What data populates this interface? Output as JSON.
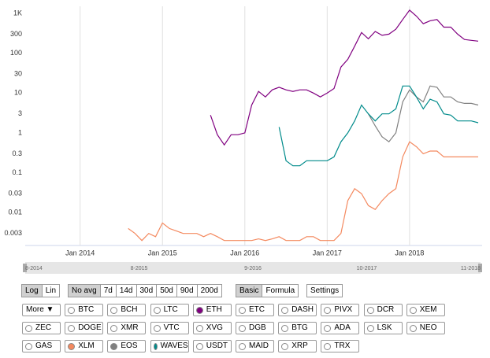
{
  "chart_data": {
    "type": "line",
    "log_scale": true,
    "grid": true,
    "x": [
      "2014-08",
      "2014-09",
      "2014-10",
      "2014-11",
      "2014-12",
      "2015-01",
      "2015-02",
      "2015-03",
      "2015-04",
      "2015-05",
      "2015-06",
      "2015-07",
      "2015-08",
      "2015-09",
      "2015-10",
      "2015-11",
      "2015-12",
      "2016-01",
      "2016-02",
      "2016-03",
      "2016-04",
      "2016-05",
      "2016-06",
      "2016-07",
      "2016-08",
      "2016-09",
      "2016-10",
      "2016-11",
      "2016-12",
      "2017-01",
      "2017-02",
      "2017-03",
      "2017-04",
      "2017-05",
      "2017-06",
      "2017-07",
      "2017-08",
      "2017-09",
      "2017-10",
      "2017-11",
      "2017-12",
      "2018-01",
      "2018-02",
      "2018-03",
      "2018-04",
      "2018-05",
      "2018-06",
      "2018-07",
      "2018-08",
      "2018-09",
      "2018-10",
      "2018-11"
    ],
    "xlim": [
      "2013-05",
      "2018-11"
    ],
    "xticks": [
      {
        "value": "2014-01",
        "label": "Jan 2014"
      },
      {
        "value": "2015-01",
        "label": "Jan 2015"
      },
      {
        "value": "2016-01",
        "label": "Jan 2016"
      },
      {
        "value": "2017-01",
        "label": "Jan 2017"
      },
      {
        "value": "2018-01",
        "label": "Jan 2018"
      }
    ],
    "ylim": [
      0.0015,
      1500
    ],
    "yticks": [
      0.003,
      0.01,
      0.03,
      0.1,
      0.3,
      1,
      3,
      10,
      30,
      100,
      300,
      {
        "value": 1000,
        "label": "1K"
      }
    ],
    "series": [
      {
        "name": "ETH",
        "color": "#800080",
        "values": [
          null,
          null,
          null,
          null,
          null,
          null,
          null,
          null,
          null,
          null,
          null,
          null,
          2.8,
          0.9,
          0.5,
          0.9,
          0.9,
          1,
          5,
          11,
          8,
          12,
          14,
          12,
          11,
          12,
          12,
          10,
          8,
          10,
          13,
          45,
          70,
          150,
          330,
          230,
          350,
          280,
          300,
          400,
          700,
          1200,
          850,
          550,
          650,
          700,
          450,
          450,
          300,
          220,
          210,
          200
        ]
      },
      {
        "name": "XLM",
        "color": "#f4895f",
        "values": [
          0.004,
          0.003,
          0.002,
          0.003,
          0.0025,
          0.0055,
          0.004,
          0.0035,
          0.003,
          0.003,
          0.003,
          0.0025,
          0.003,
          0.0025,
          0.002,
          0.002,
          0.002,
          0.002,
          0.002,
          0.0022,
          0.002,
          0.0022,
          0.0025,
          0.002,
          0.002,
          0.002,
          0.0025,
          0.0025,
          0.002,
          0.002,
          0.002,
          0.003,
          0.02,
          0.04,
          0.03,
          0.015,
          0.012,
          0.02,
          0.03,
          0.04,
          0.25,
          0.6,
          0.45,
          0.3,
          0.35,
          0.35,
          0.25,
          0.25,
          0.25,
          0.25,
          0.25,
          0.25
        ]
      },
      {
        "name": "EOS",
        "color": "#808080",
        "values": [
          null,
          null,
          null,
          null,
          null,
          null,
          null,
          null,
          null,
          null,
          null,
          null,
          null,
          null,
          null,
          null,
          null,
          null,
          null,
          null,
          null,
          null,
          null,
          null,
          null,
          null,
          null,
          null,
          null,
          null,
          null,
          null,
          null,
          null,
          null,
          3,
          1.5,
          0.8,
          0.6,
          1,
          6,
          12,
          8,
          6,
          15,
          14,
          8,
          8,
          6,
          5.5,
          5.5,
          5
        ]
      },
      {
        "name": "WAVES",
        "color": "#008b8b",
        "values": [
          null,
          null,
          null,
          null,
          null,
          null,
          null,
          null,
          null,
          null,
          null,
          null,
          null,
          null,
          null,
          null,
          null,
          null,
          null,
          null,
          null,
          null,
          1.4,
          0.2,
          0.15,
          0.15,
          0.2,
          0.2,
          0.2,
          0.2,
          0.25,
          0.6,
          1,
          2,
          5,
          3,
          2,
          3,
          3,
          4,
          15,
          15,
          8,
          4,
          7,
          6,
          3,
          2.8,
          2,
          2,
          2,
          1.8
        ]
      }
    ],
    "navigator": [
      "8-2014",
      "8-2015",
      "9-2016",
      "10-2017",
      "11-2018"
    ]
  },
  "controls": {
    "scale": [
      "Log",
      "Lin"
    ],
    "average": [
      "No avg",
      "7d",
      "14d",
      "30d",
      "50d",
      "90d",
      "200d"
    ],
    "average_active": 0,
    "mode": [
      "Basic",
      "Formula"
    ],
    "mode_active": 0,
    "settings": "Settings",
    "more": "More ▼",
    "coins": [
      "BTC",
      "BCH",
      "LTC",
      "ETH",
      "ETC",
      "DASH",
      "PIVX",
      "DCR",
      "XEM",
      "ZEC",
      "DOGE",
      "XMR",
      "VTC",
      "XVG",
      "DGB",
      "BTG",
      "ADA",
      "LSK",
      "NEO",
      "GAS",
      "XLM",
      "EOS",
      "WAVES",
      "USDT",
      "MAID",
      "XRP",
      "TRX"
    ]
  }
}
